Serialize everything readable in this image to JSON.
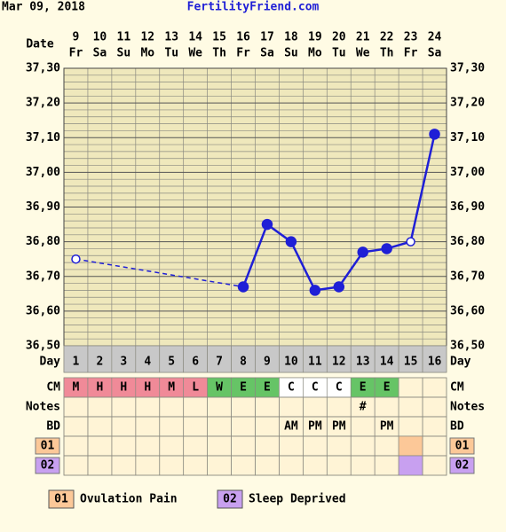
{
  "header": {
    "date": "Mar 09, 2018",
    "site": "FertilityFriend.com"
  },
  "chart_data": {
    "type": "line",
    "x_label": "Date",
    "categories": [
      "9",
      "10",
      "11",
      "12",
      "13",
      "14",
      "15",
      "16",
      "17",
      "18",
      "19",
      "20",
      "21",
      "22",
      "23",
      "24"
    ],
    "weekdays": [
      "Fr",
      "Sa",
      "Su",
      "Mo",
      "Tu",
      "We",
      "Th",
      "Fr",
      "Sa",
      "Su",
      "Mo",
      "Tu",
      "We",
      "Th",
      "Fr",
      "Sa"
    ],
    "series": [
      {
        "color": "#1f1fd6",
        "values": [
          36.75,
          null,
          null,
          null,
          null,
          null,
          null,
          36.67,
          36.85,
          36.8,
          36.66,
          36.67,
          36.77,
          36.78,
          36.8,
          37.11
        ]
      }
    ],
    "hollow_points": [
      0,
      14
    ],
    "dashed_gaps": true,
    "ylim": [
      36.5,
      37.3
    ],
    "yticks": [
      {
        "value": 36.5,
        "label": "36,50"
      },
      {
        "value": 36.6,
        "label": "36,60"
      },
      {
        "value": 36.7,
        "label": "36,70"
      },
      {
        "value": 36.8,
        "label": "36,80"
      },
      {
        "value": 36.9,
        "label": "36,90"
      },
      {
        "value": 37.0,
        "label": "37,00"
      },
      {
        "value": 37.1,
        "label": "37,10"
      },
      {
        "value": 37.2,
        "label": "37,20"
      },
      {
        "value": 37.3,
        "label": "37,30"
      }
    ],
    "minor_yticks": [
      36.52,
      36.54,
      36.56,
      36.58,
      36.62,
      36.64,
      36.66,
      36.68,
      36.72,
      36.74,
      36.76,
      36.78,
      36.82,
      36.84,
      36.86,
      36.88,
      36.92,
      36.94,
      36.96,
      36.98,
      37.02,
      37.04,
      37.06,
      37.08,
      37.12,
      37.14,
      37.16,
      37.18,
      37.22,
      37.24,
      37.26,
      37.28
    ],
    "grid": true
  },
  "rows": [
    {
      "label": "Day",
      "cells": [
        1,
        2,
        3,
        4,
        5,
        6,
        7,
        8,
        9,
        10,
        11,
        12,
        13,
        14,
        15,
        16
      ],
      "cell_colors": [
        "#c8c8c8",
        "#c8c8c8",
        "#c8c8c8",
        "#c8c8c8",
        "#c8c8c8",
        "#c8c8c8",
        "#c8c8c8",
        "#c8c8c8",
        "#c8c8c8",
        "#c8c8c8",
        "#c8c8c8",
        "#c8c8c8",
        "#c8c8c8",
        "#c8c8c8",
        "#c8c8c8",
        "#c8c8c8"
      ]
    },
    {
      "label": "CM",
      "cells": [
        "M",
        "H",
        "H",
        "H",
        "M",
        "L",
        "W",
        "E",
        "E",
        "C",
        "C",
        "C",
        "E",
        "E",
        null,
        null
      ],
      "cell_colors": [
        "#f08a98",
        "#f08a98",
        "#f08a98",
        "#f08a98",
        "#f08a98",
        "#f08a98",
        "#66c466",
        "#66c466",
        "#66c466",
        "#ffffff",
        "#ffffff",
        "#ffffff",
        "#66c466",
        "#66c466",
        null,
        null
      ]
    },
    {
      "label": "Notes",
      "cells": [
        null,
        null,
        null,
        null,
        null,
        null,
        null,
        null,
        null,
        null,
        null,
        null,
        "#",
        null,
        null,
        null
      ]
    },
    {
      "label": "BD",
      "cells": [
        null,
        null,
        null,
        null,
        null,
        null,
        null,
        null,
        null,
        "AM",
        "PM",
        "PM",
        null,
        "PM",
        null,
        null
      ]
    },
    {
      "label": "01",
      "label_color": "#fcc898",
      "cells": [
        null,
        null,
        null,
        null,
        null,
        null,
        null,
        null,
        null,
        null,
        null,
        null,
        null,
        null,
        null,
        null
      ],
      "cell_colors": [
        null,
        null,
        null,
        null,
        null,
        null,
        null,
        null,
        null,
        null,
        null,
        null,
        null,
        null,
        "#fcc898",
        null
      ]
    },
    {
      "label": "02",
      "label_color": "#c8a0f0",
      "cells": [
        null,
        null,
        null,
        null,
        null,
        null,
        null,
        null,
        null,
        null,
        null,
        null,
        null,
        null,
        null,
        null
      ],
      "cell_colors": [
        null,
        null,
        null,
        null,
        null,
        null,
        null,
        null,
        null,
        null,
        null,
        null,
        null,
        null,
        "#c8a0f0",
        null
      ]
    }
  ],
  "legend": [
    {
      "code": "01",
      "text": "Ovulation Pain",
      "color": "#fcc898"
    },
    {
      "code": "02",
      "text": "Sleep Deprived",
      "color": "#c8a0f0"
    }
  ]
}
